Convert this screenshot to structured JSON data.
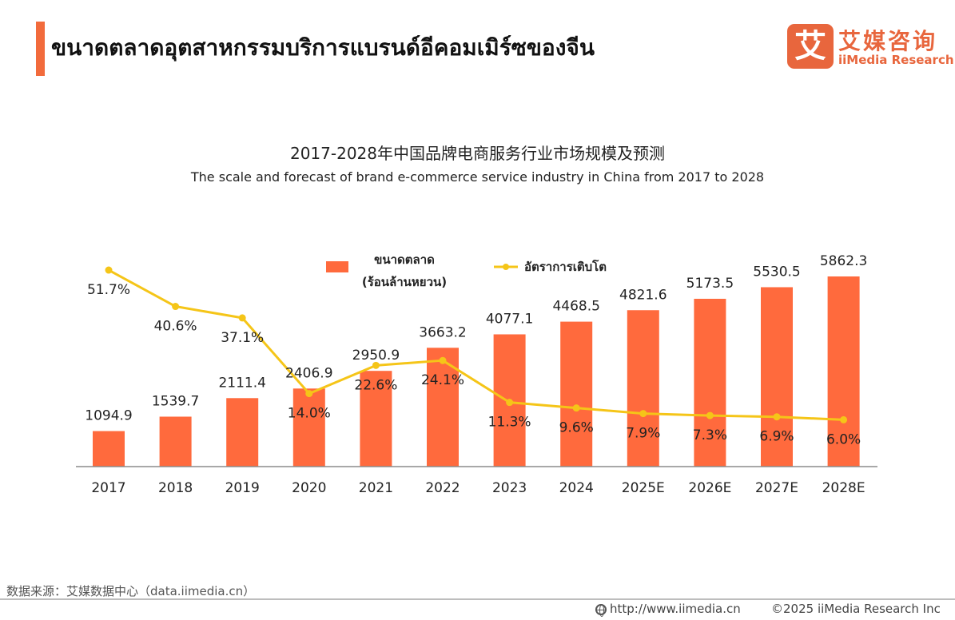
{
  "header": {
    "title": "ขนาดตลาดอุตสาหกรรมบริการแบรนด์อีคอมเมิร์ซของจีน",
    "accent_color": "#f26b3c"
  },
  "logo": {
    "mark": "艾",
    "cn": "艾媒咨询",
    "en": "iiMedia Research",
    "color": "#e8663d"
  },
  "chart_data": {
    "type": "bar",
    "title": "2017-2028年中国品牌电商服务行业市场规模及预测",
    "subtitle": "The scale and forecast of brand e-commerce service industry in China from 2017 to 2028",
    "categories": [
      "2017",
      "2018",
      "2019",
      "2020",
      "2021",
      "2022",
      "2023",
      "2024",
      "2025E",
      "2026E",
      "2027E",
      "2028E"
    ],
    "series": [
      {
        "name": "ขนาดตลาด (ร้อนล้านหยวน)",
        "name_line1": "ขนาดตลาด",
        "name_line2": "(ร้อนล้านหยวน)",
        "type": "bar",
        "color": "#ff6a3d",
        "values": [
          1094.9,
          1539.7,
          2111.4,
          2406.9,
          2950.9,
          3663.2,
          4077.1,
          4468.5,
          4821.6,
          5173.5,
          5530.5,
          5862.3
        ],
        "labels": [
          "1094.9",
          "1539.7",
          "2111.4",
          "2406.9",
          "2950.9",
          "3663.2",
          "4077.1",
          "4468.5",
          "4821.6",
          "5173.5",
          "5530.5",
          "5862.3"
        ]
      },
      {
        "name": "อัตราการเติบโต",
        "type": "line",
        "color": "#f5c518",
        "values": [
          51.7,
          40.6,
          37.1,
          14.0,
          22.6,
          24.1,
          11.3,
          9.6,
          7.9,
          7.3,
          6.9,
          6.0
        ],
        "labels": [
          "51.7%",
          "40.6%",
          "37.1%",
          "14.0%",
          "22.6%",
          "24.1%",
          "11.3%",
          "9.6%",
          "7.9%",
          "7.3%",
          "6.9%",
          "6.0%"
        ]
      }
    ],
    "legend_position": "top-center",
    "grid": false
  },
  "footer": {
    "source": "数据来源：艾媒数据中心（data.iimedia.cn）",
    "url": "http://www.iimedia.cn",
    "copyright": "©2025  iiMedia Research  Inc"
  }
}
